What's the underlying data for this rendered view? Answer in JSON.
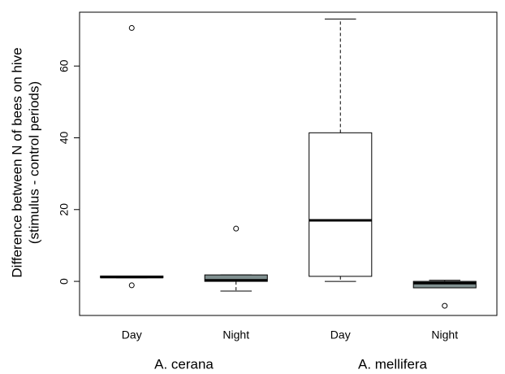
{
  "chart_data": {
    "type": "box",
    "y_label": [
      "Difference between N of bees on hive",
      "(stimulus - control periods)"
    ],
    "categories": [
      "Day",
      "Night",
      "Day",
      "Night"
    ],
    "groups": [
      "A. cerana",
      "A. mellifera"
    ],
    "ylim": [
      -9.5,
      75
    ],
    "yticks": [
      0,
      20,
      40,
      60
    ],
    "boxes": [
      {
        "whisker_low": 1,
        "q1": 1,
        "median": 1.2,
        "q3": 1.5,
        "whisker_high": 1.5,
        "outliers": [
          70.6,
          -1.1
        ],
        "color": "#ffffff"
      },
      {
        "whisker_low": -2.7,
        "q1": 0,
        "median": 0.3,
        "q3": 1.8,
        "whisker_high": 1.8,
        "outliers": [
          14.7
        ],
        "color": "#7f8f8f"
      },
      {
        "whisker_low": 0,
        "q1": 1.4,
        "median": 17,
        "q3": 41.4,
        "whisker_high": 73.1,
        "outliers": [],
        "color": "#ffffff"
      },
      {
        "whisker_low": -1.8,
        "q1": -1.8,
        "median": -0.5,
        "q3": 0,
        "whisker_high": 0.3,
        "outliers": [
          -6.8
        ],
        "color": "#7f8f8f"
      }
    ]
  }
}
